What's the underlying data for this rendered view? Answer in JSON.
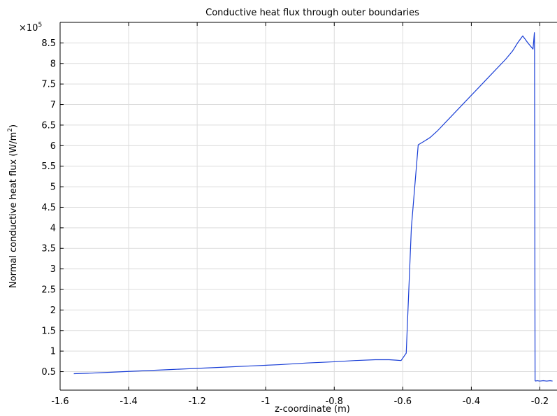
{
  "chart_data": {
    "type": "line",
    "title": "Conductive heat flux through outer boundaries",
    "xlabel": "z-coordinate (m)",
    "ylabel_prefix": "Normal conductive heat flux (W/m",
    "ylabel_sup": "2",
    "ylabel_suffix": ")",
    "y_multiplier_prefix": "×10",
    "y_multiplier_exp": "5",
    "xlim": [
      -1.6,
      -0.15
    ],
    "ylim": [
      0.05,
      9.0
    ],
    "grid": true,
    "legend": "none",
    "series_color": "#1a3fd6",
    "x_ticks": [
      {
        "value": -1.6,
        "label": "-1.6"
      },
      {
        "value": -1.4,
        "label": "-1.4"
      },
      {
        "value": -1.2,
        "label": "-1.2"
      },
      {
        "value": -1.0,
        "label": "-1"
      },
      {
        "value": -0.8,
        "label": "-0.8"
      },
      {
        "value": -0.6,
        "label": "-0.6"
      },
      {
        "value": -0.4,
        "label": "-0.4"
      },
      {
        "value": -0.2,
        "label": "-0.2"
      }
    ],
    "y_ticks": [
      {
        "value": 0.5,
        "label": "0.5"
      },
      {
        "value": 1,
        "label": "1"
      },
      {
        "value": 1.5,
        "label": "1.5"
      },
      {
        "value": 2,
        "label": "2"
      },
      {
        "value": 2.5,
        "label": "2.5"
      },
      {
        "value": 3,
        "label": "3"
      },
      {
        "value": 3.5,
        "label": "3.5"
      },
      {
        "value": 4,
        "label": "4"
      },
      {
        "value": 4.5,
        "label": "4.5"
      },
      {
        "value": 5,
        "label": "5"
      },
      {
        "value": 5.5,
        "label": "5.5"
      },
      {
        "value": 6,
        "label": "6"
      },
      {
        "value": 6.5,
        "label": "6.5"
      },
      {
        "value": 7,
        "label": "7"
      },
      {
        "value": 7.5,
        "label": "7.5"
      },
      {
        "value": 8,
        "label": "8"
      },
      {
        "value": 8.5,
        "label": "8.5"
      }
    ],
    "series": [
      {
        "x": [
          -1.56,
          -1.52,
          -1.44,
          -1.36,
          -1.28,
          -1.2,
          -1.12,
          -1.04,
          -0.96,
          -0.88,
          -0.8,
          -0.74,
          -0.68,
          -0.64,
          -0.62,
          -0.605,
          -0.59,
          -0.575,
          -0.555,
          -0.535,
          -0.52,
          -0.5,
          -0.46,
          -0.42,
          -0.38,
          -0.34,
          -0.3,
          -0.28,
          -0.265,
          -0.25,
          -0.235,
          -0.22,
          -0.216,
          -0.2155,
          -0.214,
          -0.212,
          -0.208,
          -0.2,
          -0.19,
          -0.18,
          -0.17,
          -0.163
        ],
        "y": [
          0.45,
          0.46,
          0.49,
          0.52,
          0.55,
          0.58,
          0.61,
          0.64,
          0.67,
          0.71,
          0.74,
          0.77,
          0.79,
          0.79,
          0.78,
          0.77,
          0.95,
          4.0,
          6.02,
          6.12,
          6.2,
          6.35,
          6.7,
          7.05,
          7.4,
          7.75,
          8.1,
          8.3,
          8.5,
          8.67,
          8.5,
          8.35,
          8.75,
          8.3,
          0.28,
          0.27,
          0.28,
          0.27,
          0.28,
          0.27,
          0.28,
          0.27
        ]
      }
    ]
  }
}
